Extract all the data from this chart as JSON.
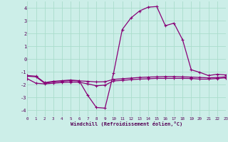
{
  "xlabel": "Windchill (Refroidissement éolien,°C)",
  "background_color": "#cceee8",
  "grid_color": "#aaddcc",
  "line_color": "#880077",
  "xlim": [
    0,
    23
  ],
  "ylim": [
    -4.5,
    4.5
  ],
  "yticks": [
    -4,
    -3,
    -2,
    -1,
    0,
    1,
    2,
    3,
    4
  ],
  "xticks": [
    0,
    1,
    2,
    3,
    4,
    5,
    6,
    7,
    8,
    9,
    10,
    11,
    12,
    13,
    14,
    15,
    16,
    17,
    18,
    19,
    20,
    21,
    22,
    23
  ],
  "series": [
    [
      [
        0,
        -1.3
      ],
      [
        1,
        -1.35
      ],
      [
        2,
        -1.85
      ],
      [
        3,
        -1.75
      ],
      [
        4,
        -1.7
      ],
      [
        5,
        -1.65
      ],
      [
        6,
        -1.7
      ],
      [
        7,
        -2.85
      ],
      [
        8,
        -3.8
      ],
      [
        9,
        -3.85
      ],
      [
        10,
        -1.1
      ],
      [
        11,
        2.3
      ],
      [
        12,
        3.2
      ],
      [
        13,
        3.75
      ],
      [
        14,
        4.05
      ],
      [
        15,
        4.1
      ],
      [
        16,
        2.6
      ],
      [
        17,
        2.8
      ],
      [
        18,
        1.5
      ],
      [
        19,
        -0.85
      ],
      [
        20,
        -1.05
      ],
      [
        21,
        -1.3
      ],
      [
        22,
        -1.2
      ],
      [
        23,
        -1.25
      ]
    ],
    [
      [
        0,
        -1.35
      ],
      [
        1,
        -1.4
      ],
      [
        2,
        -1.9
      ],
      [
        3,
        -1.8
      ],
      [
        4,
        -1.75
      ],
      [
        5,
        -1.7
      ],
      [
        6,
        -1.72
      ],
      [
        7,
        -1.75
      ],
      [
        8,
        -1.8
      ],
      [
        9,
        -1.78
      ],
      [
        10,
        -1.6
      ],
      [
        11,
        -1.55
      ],
      [
        12,
        -1.5
      ],
      [
        13,
        -1.45
      ],
      [
        14,
        -1.42
      ],
      [
        15,
        -1.4
      ],
      [
        16,
        -1.38
      ],
      [
        17,
        -1.38
      ],
      [
        18,
        -1.4
      ],
      [
        19,
        -1.42
      ],
      [
        20,
        -1.45
      ],
      [
        21,
        -1.48
      ],
      [
        22,
        -1.45
      ],
      [
        23,
        -1.4
      ]
    ],
    [
      [
        0,
        -1.55
      ],
      [
        1,
        -1.9
      ],
      [
        2,
        -1.95
      ],
      [
        3,
        -1.9
      ],
      [
        4,
        -1.85
      ],
      [
        5,
        -1.82
      ],
      [
        6,
        -1.82
      ],
      [
        7,
        -1.95
      ],
      [
        8,
        -2.1
      ],
      [
        9,
        -2.05
      ],
      [
        10,
        -1.72
      ],
      [
        11,
        -1.68
      ],
      [
        12,
        -1.62
      ],
      [
        13,
        -1.58
      ],
      [
        14,
        -1.55
      ],
      [
        15,
        -1.52
      ],
      [
        16,
        -1.52
      ],
      [
        17,
        -1.52
      ],
      [
        18,
        -1.52
      ],
      [
        19,
        -1.53
      ],
      [
        20,
        -1.58
      ],
      [
        21,
        -1.58
      ],
      [
        22,
        -1.53
      ],
      [
        23,
        -1.48
      ]
    ]
  ]
}
